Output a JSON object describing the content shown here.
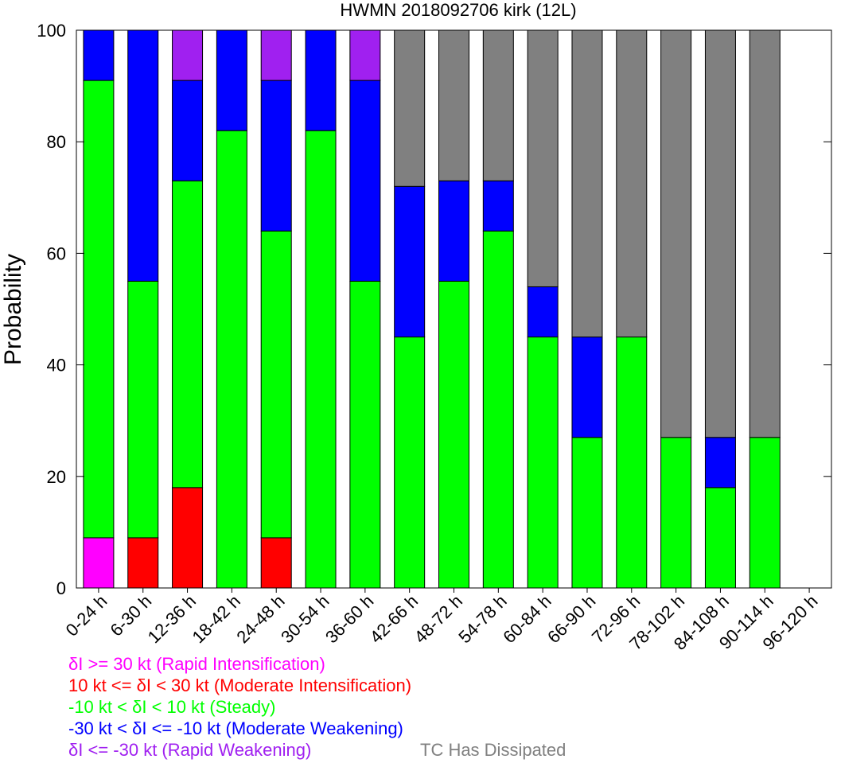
{
  "chart_data": {
    "type": "bar",
    "stacked": true,
    "title": "HWMN 2018092706 kirk (12L)",
    "ylabel": "Probability",
    "xlabel": "",
    "ylim": [
      0,
      100
    ],
    "yticks": [
      "0",
      "20",
      "40",
      "60",
      "80",
      "100"
    ],
    "categories": [
      "0-24 h",
      "6-30 h",
      "12-36 h",
      "18-42 h",
      "24-48 h",
      "30-54 h",
      "36-60 h",
      "42-66 h",
      "48-72 h",
      "54-78 h",
      "60-84 h",
      "66-90 h",
      "72-96 h",
      "78-102 h",
      "84-108 h",
      "90-114 h",
      "96-120 h"
    ],
    "series": [
      {
        "name": "δI >= 30 kt (Rapid Intensification)",
        "color": "#ff00ff",
        "values": [
          9,
          0,
          0,
          0,
          0,
          0,
          0,
          0,
          0,
          0,
          0,
          0,
          0,
          0,
          0,
          0,
          0
        ]
      },
      {
        "name": "10 kt <= δI < 30 kt (Moderate Intensification)",
        "color": "#ff0000",
        "values": [
          0,
          9,
          18,
          0,
          9,
          0,
          0,
          0,
          0,
          0,
          0,
          0,
          0,
          0,
          0,
          0,
          0
        ]
      },
      {
        "name": "-10 kt < δI < 10 kt (Steady)",
        "color": "#00ff00",
        "values": [
          82,
          46,
          55,
          82,
          55,
          82,
          55,
          45,
          55,
          64,
          45,
          27,
          45,
          27,
          18,
          27,
          0
        ]
      },
      {
        "name": "-30 kt < δI <= -10 kt (Moderate Weakening)",
        "color": "#0000ff",
        "values": [
          9,
          45,
          18,
          18,
          27,
          18,
          36,
          27,
          18,
          9,
          9,
          18,
          0,
          0,
          9,
          0,
          0
        ]
      },
      {
        "name": "δI <= -30 kt (Rapid Weakening)",
        "color": "#a020f0",
        "values": [
          0,
          0,
          9,
          0,
          9,
          0,
          9,
          0,
          0,
          0,
          0,
          0,
          0,
          0,
          0,
          0,
          0
        ]
      },
      {
        "name": "TC Has Dissipated",
        "color": "#808080",
        "values": [
          0,
          0,
          0,
          0,
          0,
          0,
          0,
          28,
          27,
          27,
          46,
          55,
          55,
          73,
          73,
          73,
          0
        ]
      }
    ],
    "legend_placement": "bottom-left",
    "grid": false
  }
}
